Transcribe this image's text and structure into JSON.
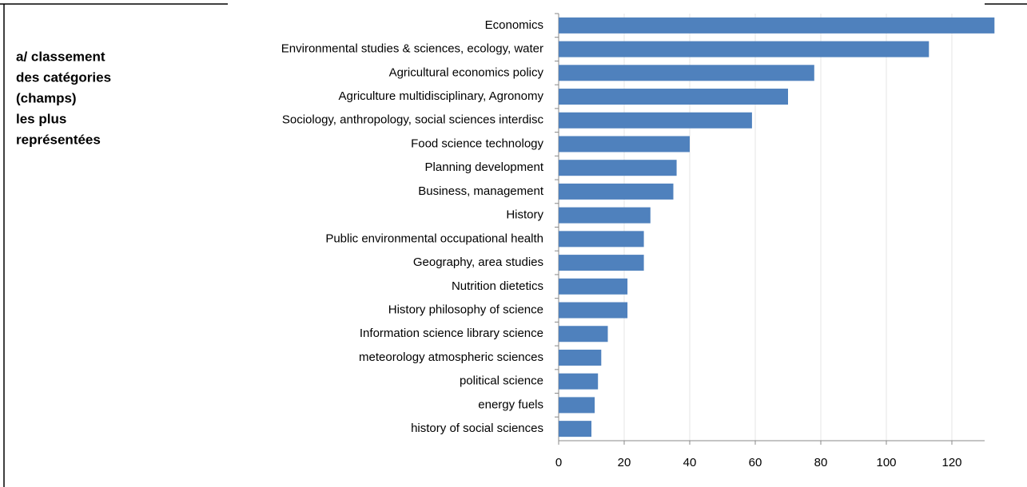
{
  "chart_data": {
    "type": "barh",
    "annotations": [
      "a/ classement",
      "des catégories",
      "(champs)",
      "les plus",
      "représentées"
    ],
    "categories": [
      "Economics",
      "Environmental studies & sciences, ecology, water",
      "Agricultural economics policy",
      "Agriculture multidisciplinary, Agronomy",
      "Sociology, anthropology, social sciences interdisc",
      "Food science technology",
      "Planning development",
      "Business, management",
      "History",
      "Public environmental occupational health",
      "Geography, area studies",
      "Nutrition dietetics",
      "History philosophy of science",
      "Information science library science",
      "meteorology atmospheric sciences",
      "political science",
      "energy fuels",
      "history of social sciences"
    ],
    "values": [
      133,
      113,
      78,
      70,
      59,
      40,
      36,
      35,
      28,
      26,
      26,
      21,
      21,
      15,
      13,
      12,
      11,
      10
    ],
    "color": "#4f81bd",
    "xlim": [
      0,
      130
    ],
    "xticks": [
      0,
      20,
      40,
      60,
      80,
      100,
      120
    ],
    "grid": true
  }
}
